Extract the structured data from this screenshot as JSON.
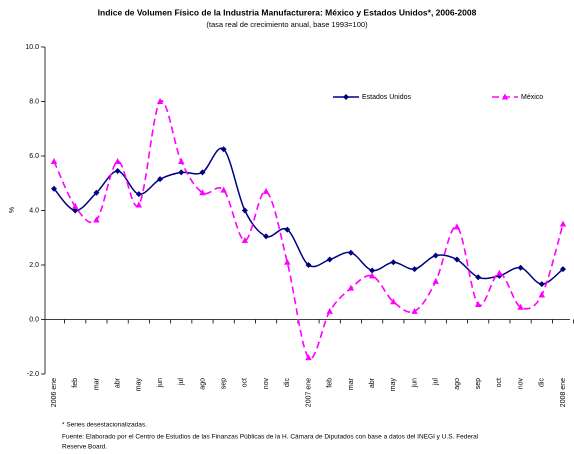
{
  "chart_data": {
    "type": "line",
    "title": "Indice de Volumen Físico de la Industria Manufacturera:  México y Estados Unidos*, 2006-2008",
    "subtitle": "(tasa real de crecimiento anual, base 1993=100)",
    "y_label": "%",
    "categories": [
      "2006 ene",
      "feb",
      "mar",
      "abr",
      "may",
      "jun",
      "jul",
      "ago",
      "sep",
      "oct",
      "nov",
      "dic",
      "2007 ene",
      "feb",
      "mar",
      "abr",
      "may",
      "jun",
      "jul",
      "ago",
      "sep",
      "oct",
      "nov",
      "dic",
      "2008 ene"
    ],
    "series": [
      {
        "name": "Estados Unidos",
        "color": "#000080",
        "dashed": false,
        "marker": "diamond",
        "values": [
          4.8,
          4.0,
          4.65,
          5.45,
          4.6,
          5.15,
          5.4,
          5.4,
          6.25,
          4.0,
          3.05,
          3.3,
          2.0,
          2.2,
          2.45,
          1.8,
          2.1,
          1.85,
          2.35,
          2.2,
          1.55,
          1.6,
          1.9,
          1.3,
          1.85
        ]
      },
      {
        "name": "México",
        "color": "#ff00ff",
        "dashed": true,
        "marker": "triangle",
        "values": [
          5.8,
          4.15,
          3.65,
          5.8,
          4.2,
          8.0,
          5.8,
          4.65,
          4.75,
          2.9,
          4.7,
          2.1,
          -1.4,
          0.3,
          1.15,
          1.6,
          0.65,
          0.3,
          1.4,
          3.4,
          0.55,
          1.7,
          0.45,
          0.9,
          3.5
        ]
      }
    ],
    "ylim": [
      -2,
      10
    ],
    "yticks": [
      {
        "value": -2,
        "label": "-2.0"
      },
      {
        "value": 0,
        "label": "0.0"
      },
      {
        "value": 2,
        "label": "2.0"
      },
      {
        "value": 4,
        "label": "4.0"
      },
      {
        "value": 6,
        "label": "6.0"
      },
      {
        "value": 8,
        "label": "8.0"
      },
      {
        "value": 10,
        "label": "10.0"
      }
    ],
    "grid": false,
    "notes": [
      "* Series desestacionalizadas.",
      "Fuente: Elaborado por el Centro de Estudios de las Finanzas Públicas de la H. Cámara de Diputados con base a datos del INEGI y U.S. Federal",
      "Reserve Board."
    ]
  }
}
